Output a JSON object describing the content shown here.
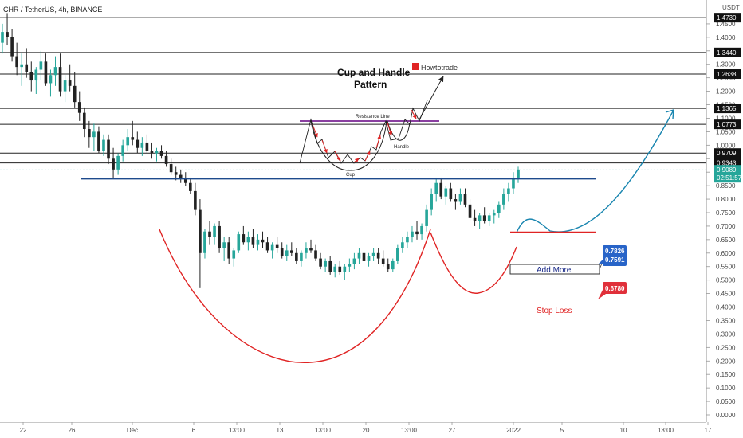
{
  "header": {
    "symbol_text": "CHR / TetherUS, 4h, BINANCE"
  },
  "axis": {
    "unit_label": "USDT"
  },
  "annotations": {
    "pattern_title_line1": "Cup and Handle",
    "pattern_title_line2": "Pattern",
    "watermark": "Howtotrade",
    "resistance_label": "Resistance Line",
    "cup_label": "Cup",
    "handle_label": "Handle",
    "add_more_label": "Add More",
    "stop_loss_label": "Stop Loss",
    "entry_box_line1": "0.7826",
    "entry_box_line2": "0.7591",
    "stop_box": "0.6780"
  },
  "colors": {
    "bull": "#26a69a",
    "bear": "#222222",
    "cup_curve": "#e02424",
    "projection": "#1a86b0",
    "support_line": "#1e4a8c",
    "stop_line": "#e02424",
    "resistance_line": "#8a3fa0",
    "price_label_bg": "#26a69a",
    "entry_badge": "#2864c8",
    "stop_badge": "#e0303a"
  },
  "chart_data": {
    "type": "candlestick",
    "title": "CHR / TetherUS, 4h, BINANCE",
    "ylabel": "USDT",
    "ylim": [
      0.0,
      1.5
    ],
    "y_ticks": [
      0.0,
      0.05,
      0.1,
      0.15,
      0.2,
      0.25,
      0.3,
      0.35,
      0.4,
      0.45,
      0.5,
      0.55,
      0.6,
      0.65,
      0.7,
      0.75,
      0.8,
      0.85,
      0.9,
      0.95,
      1.0,
      1.05,
      1.1,
      1.15,
      1.2,
      1.25,
      1.3,
      1.35,
      1.4,
      1.45
    ],
    "y_tick_labels": [
      "0.0000",
      "0.0500",
      "0.1000",
      "0.1500",
      "0.2000",
      "0.2500",
      "0.3000",
      "0.3500",
      "0.4000",
      "0.4500",
      "0.5000",
      "0.5500",
      "0.6000",
      "0.6500",
      "0.7000",
      "0.7500",
      "0.8000",
      "0.8500",
      "0.9000",
      "0.9500",
      "1.0000",
      "1.0500",
      "1.1000",
      "1.1500",
      "1.2000",
      "1.2500",
      "1.3000",
      "1.3500",
      "1.4000",
      "1.4500"
    ],
    "x_ticks": [
      "22",
      "26",
      "Dec",
      "6",
      "13:00",
      "13",
      "13:00",
      "20",
      "13:00",
      "27",
      "2022",
      "5",
      "10",
      "13:00",
      "17"
    ],
    "horizontal_levels": [
      {
        "price": 1.473,
        "label": "1.4730"
      },
      {
        "price": 1.344,
        "label": "1.3440"
      },
      {
        "price": 1.2638,
        "label": "1.2638"
      },
      {
        "price": 1.1365,
        "label": "1.1365"
      },
      {
        "price": 1.0773,
        "label": "1.0773"
      },
      {
        "price": 0.9709,
        "label": "0.9709"
      },
      {
        "price": 0.9343,
        "label": "0.9343"
      }
    ],
    "current_price": {
      "price": 0.9089,
      "label": "0.9089",
      "countdown": "02:51:57"
    },
    "support_line_price": 0.875,
    "add_more_zone": [
      0.7591,
      0.7826
    ],
    "stop_loss_price": 0.678,
    "candles": [
      [
        1.38,
        1.45,
        1.34,
        1.42
      ],
      [
        1.42,
        1.49,
        1.37,
        1.4
      ],
      [
        1.4,
        1.43,
        1.31,
        1.33
      ],
      [
        1.33,
        1.38,
        1.26,
        1.29
      ],
      [
        1.29,
        1.34,
        1.22,
        1.3
      ],
      [
        1.3,
        1.36,
        1.25,
        1.27
      ],
      [
        1.27,
        1.31,
        1.2,
        1.24
      ],
      [
        1.24,
        1.29,
        1.19,
        1.28
      ],
      [
        1.28,
        1.35,
        1.24,
        1.31
      ],
      [
        1.31,
        1.34,
        1.22,
        1.23
      ],
      [
        1.23,
        1.28,
        1.18,
        1.26
      ],
      [
        1.26,
        1.33,
        1.22,
        1.29
      ],
      [
        1.29,
        1.34,
        1.18,
        1.2
      ],
      [
        1.2,
        1.26,
        1.16,
        1.24
      ],
      [
        1.24,
        1.3,
        1.2,
        1.22
      ],
      [
        1.22,
        1.27,
        1.14,
        1.16
      ],
      [
        1.16,
        1.2,
        1.09,
        1.12
      ],
      [
        1.12,
        1.14,
        1.03,
        1.06
      ],
      [
        1.06,
        1.09,
        0.99,
        1.03
      ],
      [
        1.03,
        1.08,
        0.98,
        1.05
      ],
      [
        1.05,
        1.07,
        0.97,
        0.98
      ],
      [
        0.98,
        1.04,
        0.96,
        1.02
      ],
      [
        1.02,
        1.04,
        0.93,
        0.95
      ],
      [
        0.95,
        0.99,
        0.88,
        0.91
      ],
      [
        0.91,
        0.97,
        0.89,
        0.96
      ],
      [
        0.96,
        1.02,
        0.94,
        1.0
      ],
      [
        1.0,
        1.06,
        0.98,
        1.03
      ],
      [
        1.03,
        1.09,
        1.0,
        1.02
      ],
      [
        1.02,
        1.05,
        0.97,
        0.99
      ],
      [
        0.99,
        1.03,
        0.96,
        1.01
      ],
      [
        1.01,
        1.04,
        0.97,
        0.98
      ],
      [
        0.98,
        1.01,
        0.95,
        0.97
      ],
      [
        0.97,
        0.99,
        0.94,
        0.98
      ],
      [
        0.98,
        1.0,
        0.95,
        0.96
      ],
      [
        0.96,
        0.98,
        0.92,
        0.93
      ],
      [
        0.93,
        0.95,
        0.89,
        0.9
      ],
      [
        0.9,
        0.92,
        0.87,
        0.89
      ],
      [
        0.89,
        0.91,
        0.86,
        0.88
      ],
      [
        0.88,
        0.9,
        0.85,
        0.86
      ],
      [
        0.86,
        0.88,
        0.82,
        0.83
      ],
      [
        0.83,
        0.86,
        0.74,
        0.76
      ],
      [
        0.76,
        0.8,
        0.47,
        0.6
      ],
      [
        0.6,
        0.69,
        0.58,
        0.68
      ],
      [
        0.68,
        0.72,
        0.63,
        0.66
      ],
      [
        0.66,
        0.71,
        0.63,
        0.7
      ],
      [
        0.7,
        0.72,
        0.6,
        0.62
      ],
      [
        0.62,
        0.66,
        0.57,
        0.64
      ],
      [
        0.64,
        0.66,
        0.56,
        0.58
      ],
      [
        0.58,
        0.62,
        0.55,
        0.61
      ],
      [
        0.61,
        0.68,
        0.6,
        0.67
      ],
      [
        0.67,
        0.7,
        0.63,
        0.64
      ],
      [
        0.64,
        0.68,
        0.61,
        0.66
      ],
      [
        0.66,
        0.69,
        0.62,
        0.63
      ],
      [
        0.63,
        0.67,
        0.61,
        0.65
      ],
      [
        0.65,
        0.68,
        0.62,
        0.64
      ],
      [
        0.64,
        0.66,
        0.6,
        0.61
      ],
      [
        0.61,
        0.64,
        0.58,
        0.63
      ],
      [
        0.63,
        0.66,
        0.6,
        0.62
      ],
      [
        0.62,
        0.64,
        0.58,
        0.59
      ],
      [
        0.59,
        0.63,
        0.57,
        0.61
      ],
      [
        0.61,
        0.64,
        0.59,
        0.6
      ],
      [
        0.6,
        0.62,
        0.56,
        0.57
      ],
      [
        0.57,
        0.61,
        0.55,
        0.6
      ],
      [
        0.6,
        0.64,
        0.58,
        0.62
      ],
      [
        0.62,
        0.65,
        0.6,
        0.61
      ],
      [
        0.61,
        0.63,
        0.57,
        0.58
      ],
      [
        0.58,
        0.6,
        0.54,
        0.55
      ],
      [
        0.55,
        0.58,
        0.53,
        0.57
      ],
      [
        0.57,
        0.59,
        0.52,
        0.53
      ],
      [
        0.53,
        0.56,
        0.51,
        0.55
      ],
      [
        0.55,
        0.57,
        0.52,
        0.53
      ],
      [
        0.53,
        0.56,
        0.5,
        0.55
      ],
      [
        0.55,
        0.58,
        0.53,
        0.56
      ],
      [
        0.56,
        0.6,
        0.54,
        0.58
      ],
      [
        0.58,
        0.62,
        0.56,
        0.6
      ],
      [
        0.6,
        0.63,
        0.56,
        0.57
      ],
      [
        0.57,
        0.6,
        0.55,
        0.59
      ],
      [
        0.59,
        0.62,
        0.57,
        0.6
      ],
      [
        0.6,
        0.62,
        0.56,
        0.58
      ],
      [
        0.58,
        0.61,
        0.55,
        0.56
      ],
      [
        0.56,
        0.58,
        0.53,
        0.54
      ],
      [
        0.54,
        0.58,
        0.53,
        0.57
      ],
      [
        0.57,
        0.63,
        0.56,
        0.62
      ],
      [
        0.62,
        0.66,
        0.6,
        0.64
      ],
      [
        0.64,
        0.68,
        0.62,
        0.66
      ],
      [
        0.66,
        0.7,
        0.64,
        0.68
      ],
      [
        0.68,
        0.72,
        0.65,
        0.67
      ],
      [
        0.67,
        0.71,
        0.65,
        0.7
      ],
      [
        0.7,
        0.78,
        0.68,
        0.76
      ],
      [
        0.76,
        0.84,
        0.74,
        0.82
      ],
      [
        0.82,
        0.88,
        0.79,
        0.86
      ],
      [
        0.86,
        0.88,
        0.8,
        0.81
      ],
      [
        0.81,
        0.85,
        0.78,
        0.84
      ],
      [
        0.84,
        0.86,
        0.79,
        0.8
      ],
      [
        0.8,
        0.82,
        0.76,
        0.79
      ],
      [
        0.79,
        0.84,
        0.78,
        0.82
      ],
      [
        0.82,
        0.84,
        0.77,
        0.78
      ],
      [
        0.78,
        0.8,
        0.72,
        0.73
      ],
      [
        0.73,
        0.76,
        0.7,
        0.72
      ],
      [
        0.72,
        0.75,
        0.69,
        0.74
      ],
      [
        0.74,
        0.77,
        0.71,
        0.72
      ],
      [
        0.72,
        0.75,
        0.7,
        0.74
      ],
      [
        0.74,
        0.76,
        0.71,
        0.75
      ],
      [
        0.75,
        0.79,
        0.73,
        0.78
      ],
      [
        0.78,
        0.84,
        0.76,
        0.82
      ],
      [
        0.82,
        0.86,
        0.79,
        0.84
      ],
      [
        0.84,
        0.9,
        0.82,
        0.88
      ],
      [
        0.88,
        0.92,
        0.86,
        0.91
      ]
    ]
  }
}
